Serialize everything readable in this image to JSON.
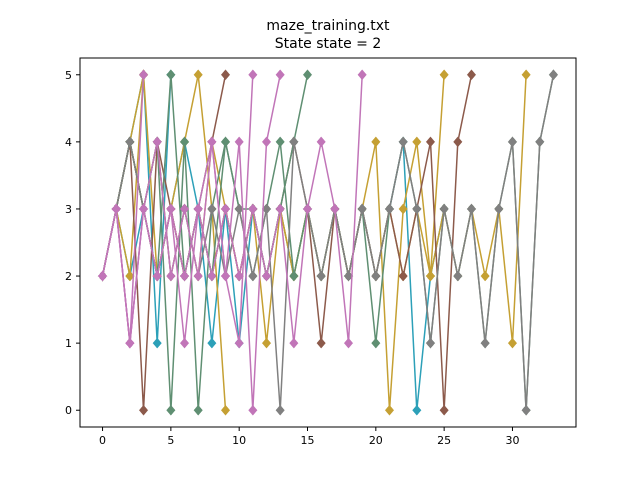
{
  "chart_data": {
    "type": "line",
    "title": "maze_training.txt",
    "subtitle": "State state = 2",
    "xlabel": "",
    "ylabel": "",
    "xlim": [
      -1.65,
      34.65
    ],
    "ylim": [
      -0.25,
      5.25
    ],
    "xticks": [
      0,
      5,
      10,
      15,
      20,
      25,
      30
    ],
    "yticks": [
      0,
      1,
      2,
      3,
      4,
      5
    ],
    "grid": false,
    "marker": "diamond",
    "series": [
      {
        "color": "#2ca0b8",
        "x": [
          0,
          1,
          2,
          3,
          4,
          5
        ],
        "y": [
          2,
          3,
          4,
          5,
          1,
          5
        ]
      },
      {
        "color": "#2ca0b8",
        "x": [
          0,
          1,
          2,
          3,
          4,
          5,
          6,
          7,
          8,
          9,
          10,
          11,
          12,
          13,
          14,
          15,
          16,
          17,
          18,
          19,
          20,
          21,
          22,
          23,
          24,
          25
        ],
        "y": [
          2,
          3,
          2,
          3,
          2,
          3,
          4,
          3,
          1,
          3,
          1,
          3,
          2,
          3,
          2,
          3,
          2,
          3,
          2,
          3,
          2,
          3,
          4,
          0,
          2,
          3
        ]
      },
      {
        "color": "#c5a033",
        "x": [
          0,
          1,
          2,
          3
        ],
        "y": [
          2,
          3,
          4,
          5
        ]
      },
      {
        "color": "#c5a033",
        "x": [
          0,
          1,
          2,
          3,
          4,
          5,
          6,
          7,
          8,
          9
        ],
        "y": [
          2,
          3,
          2,
          5,
          2,
          3,
          4,
          5,
          3,
          0
        ]
      },
      {
        "color": "#c5a033",
        "x": [
          0,
          1,
          2,
          3,
          4,
          5,
          6,
          7,
          8,
          9,
          10,
          11,
          12,
          13,
          14,
          15,
          16,
          17,
          18,
          19,
          20,
          21,
          22,
          23,
          24,
          25
        ],
        "y": [
          2,
          3,
          4,
          3,
          4,
          2,
          3,
          2,
          4,
          3,
          2,
          3,
          1,
          3,
          2,
          3,
          2,
          3,
          2,
          3,
          4,
          0,
          3,
          4,
          2,
          5
        ]
      },
      {
        "color": "#c5a033",
        "x": [
          0,
          1,
          2,
          3,
          4,
          5,
          6,
          7,
          8,
          9,
          10,
          11,
          12,
          13,
          14,
          15,
          16,
          17,
          18,
          19,
          20,
          21,
          22,
          23,
          24,
          25,
          26,
          27,
          28,
          29,
          30,
          31
        ],
        "y": [
          2,
          3,
          4,
          3,
          2,
          3,
          2,
          3,
          2,
          3,
          2,
          3,
          2,
          3,
          2,
          3,
          2,
          3,
          2,
          3,
          2,
          3,
          2,
          3,
          2,
          3,
          2,
          3,
          2,
          3,
          1,
          5
        ]
      },
      {
        "color": "#8c5a4b",
        "x": [
          0,
          1,
          2,
          3,
          4,
          5,
          6,
          7,
          8,
          9
        ],
        "y": [
          2,
          3,
          4,
          0,
          4,
          3,
          2,
          3,
          4,
          5
        ]
      },
      {
        "color": "#8c5a4b",
        "x": [
          0,
          1,
          2,
          3,
          4,
          5,
          6,
          7,
          8,
          9,
          10,
          11,
          12,
          13,
          14,
          15,
          16,
          17,
          18,
          19,
          20,
          21,
          22,
          23,
          24,
          25,
          26,
          27
        ],
        "y": [
          2,
          3,
          4,
          3,
          2,
          3,
          2,
          3,
          2,
          3,
          2,
          3,
          2,
          3,
          4,
          3,
          1,
          3,
          2,
          3,
          2,
          3,
          2,
          3,
          4,
          0,
          4,
          5
        ]
      },
      {
        "color": "#5f8f72",
        "x": [
          0,
          1,
          2,
          3,
          4,
          5,
          6,
          7,
          8,
          9,
          10,
          11,
          12,
          13,
          14,
          15
        ],
        "y": [
          2,
          3,
          4,
          3,
          4,
          0,
          4,
          0,
          3,
          4,
          3,
          3,
          2,
          3,
          4,
          5
        ]
      },
      {
        "color": "#5f8f72",
        "x": [
          0,
          1,
          2,
          3,
          4,
          5,
          6,
          7,
          8,
          9,
          10,
          11,
          12,
          13,
          14,
          15,
          16,
          17,
          18,
          19,
          20,
          21,
          22,
          23,
          24,
          25,
          26,
          27,
          28,
          29,
          30,
          31,
          32,
          33
        ],
        "y": [
          2,
          3,
          4,
          3,
          2,
          5,
          2,
          3,
          2,
          4,
          3,
          2,
          3,
          4,
          2,
          3,
          2,
          3,
          2,
          3,
          1,
          3,
          4,
          3,
          1,
          3,
          2,
          3,
          1,
          3,
          4,
          0,
          4,
          5
        ]
      },
      {
        "color": "#808080",
        "x": [
          0,
          1,
          2,
          3,
          4,
          5,
          6,
          7,
          8,
          9,
          10,
          11,
          12,
          13,
          14,
          15,
          16,
          17,
          18,
          19,
          20,
          21,
          22,
          23,
          24,
          25,
          26,
          27,
          28,
          29,
          30,
          31,
          32,
          33
        ],
        "y": [
          2,
          3,
          4,
          3,
          4,
          2,
          3,
          2,
          3,
          2,
          3,
          2,
          3,
          0,
          4,
          3,
          2,
          3,
          2,
          3,
          2,
          3,
          4,
          3,
          1,
          3,
          2,
          3,
          1,
          3,
          4,
          0,
          4,
          5
        ]
      },
      {
        "color": "#c175b8",
        "x": [
          0,
          1,
          2,
          3
        ],
        "y": [
          2,
          3,
          1,
          5
        ]
      },
      {
        "color": "#c175b8",
        "x": [
          0,
          1,
          2,
          3,
          4,
          5,
          6,
          7,
          8,
          9,
          10,
          11
        ],
        "y": [
          2,
          3,
          1,
          3,
          2,
          3,
          1,
          3,
          4,
          2,
          1,
          5
        ]
      },
      {
        "color": "#c175b8",
        "x": [
          0,
          1,
          2,
          3,
          4,
          5,
          6,
          7,
          8,
          9,
          10,
          11,
          12,
          13
        ],
        "y": [
          2,
          3,
          1,
          3,
          4,
          2,
          3,
          2,
          4,
          2,
          4,
          0,
          4,
          5
        ]
      },
      {
        "color": "#c175b8",
        "x": [
          0,
          1,
          2,
          3,
          4,
          5,
          6,
          7,
          8,
          9,
          10,
          11,
          12,
          13,
          14,
          15,
          16,
          17,
          18,
          19
        ],
        "y": [
          2,
          3,
          1,
          3,
          2,
          3,
          2,
          3,
          2,
          3,
          2,
          3,
          2,
          3,
          1,
          3,
          4,
          3,
          1,
          5
        ]
      }
    ]
  }
}
